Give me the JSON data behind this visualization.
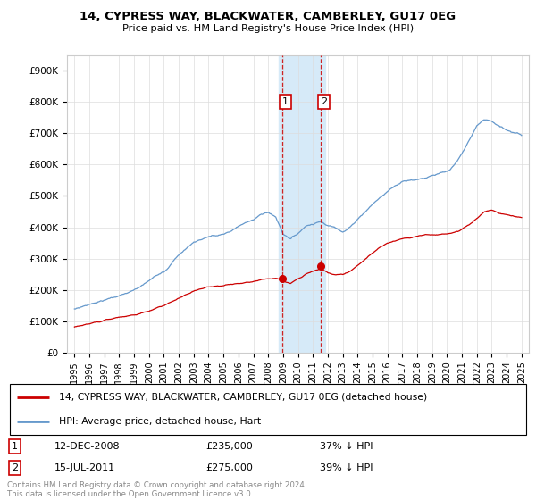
{
  "title": "14, CYPRESS WAY, BLACKWATER, CAMBERLEY, GU17 0EG",
  "subtitle": "Price paid vs. HM Land Registry's House Price Index (HPI)",
  "legend_line1": "14, CYPRESS WAY, BLACKWATER, CAMBERLEY, GU17 0EG (detached house)",
  "legend_line2": "HPI: Average price, detached house, Hart",
  "annotation1_date": "12-DEC-2008",
  "annotation1_price": "£235,000",
  "annotation1_hpi": "37% ↓ HPI",
  "annotation2_date": "15-JUL-2011",
  "annotation2_price": "£275,000",
  "annotation2_hpi": "39% ↓ HPI",
  "footer": "Contains HM Land Registry data © Crown copyright and database right 2024.\nThis data is licensed under the Open Government Licence v3.0.",
  "sale1_x": 2008.95,
  "sale1_y": 235000,
  "sale2_x": 2011.54,
  "sale2_y": 275000,
  "highlight_xmin": 2008.7,
  "highlight_xmax": 2011.8,
  "red_color": "#cc0000",
  "blue_color": "#6699cc",
  "highlight_color": "#d6eaf8",
  "ylim_min": 0,
  "ylim_max": 950000,
  "xlim_min": 1994.5,
  "xlim_max": 2025.5,
  "yticks": [
    0,
    100000,
    200000,
    300000,
    400000,
    500000,
    600000,
    700000,
    800000,
    900000
  ],
  "ylabels": [
    "£0",
    "£100K",
    "£200K",
    "£300K",
    "£400K",
    "£500K",
    "£600K",
    "£700K",
    "£800K",
    "£900K"
  ]
}
